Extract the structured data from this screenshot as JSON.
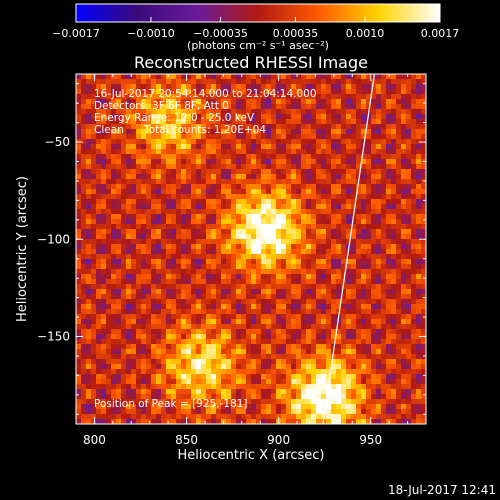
{
  "chart_data": {
    "type": "heatmap",
    "title": "Reconstructed RHESSI Image",
    "xlabel": "Heliocentric X (arcsec)",
    "ylabel": "Heliocentric Y (arcsec)",
    "xlim": [
      790,
      980
    ],
    "ylim": [
      -195,
      -15
    ],
    "x_ticks": [
      800,
      850,
      900,
      950
    ],
    "x_tick_labels": [
      "800",
      "850",
      "900",
      "950"
    ],
    "y_ticks": [
      -50,
      -100,
      -150
    ],
    "y_tick_labels": [
      "−50",
      "−100",
      "−150"
    ],
    "colorbar": {
      "range": [
        -0.0017,
        0.0017
      ],
      "ticks": [
        -0.0017,
        -0.001,
        -0.00035,
        0.00035,
        0.001,
        0.0017
      ],
      "tick_labels": [
        "−0.0017",
        "−0.0010",
        "−0.00035",
        "0.00035",
        "0.0010",
        "0.0017"
      ],
      "unit_label": "(photons cm⁻² s⁻¹ asec⁻²)",
      "colormap": [
        "#0000ff",
        "#3b0a7a",
        "#6a1b9a",
        "#b21a12",
        "#ff5a00",
        "#ffd400",
        "#ffffff"
      ]
    },
    "annotations": {
      "time_range": "16-Jul-2017 20:54:14.000 to 21:04:14.000",
      "detectors": "Detectors: 3F 6F 8F, Att 0",
      "energy_range": "Energy Range: 12.0 - 25.0 keV",
      "clean_label": "Clean",
      "total_counts": "Total counts: 1.20E+04",
      "peak": "Position of Peak = [925,-181]"
    },
    "sources": [
      {
        "x": 893,
        "y": -95,
        "intensity": 0.0017
      },
      {
        "x": 925,
        "y": -181,
        "intensity": 0.0017
      },
      {
        "x": 858,
        "y": -165,
        "intensity": 0.0012
      },
      {
        "x": 840,
        "y": -40,
        "intensity": 0.001
      }
    ],
    "limb_line": [
      [
        952,
        -15
      ],
      [
        924,
        -195
      ]
    ]
  },
  "footer": {
    "timestamp": "18-Jul-2017 12:41"
  }
}
